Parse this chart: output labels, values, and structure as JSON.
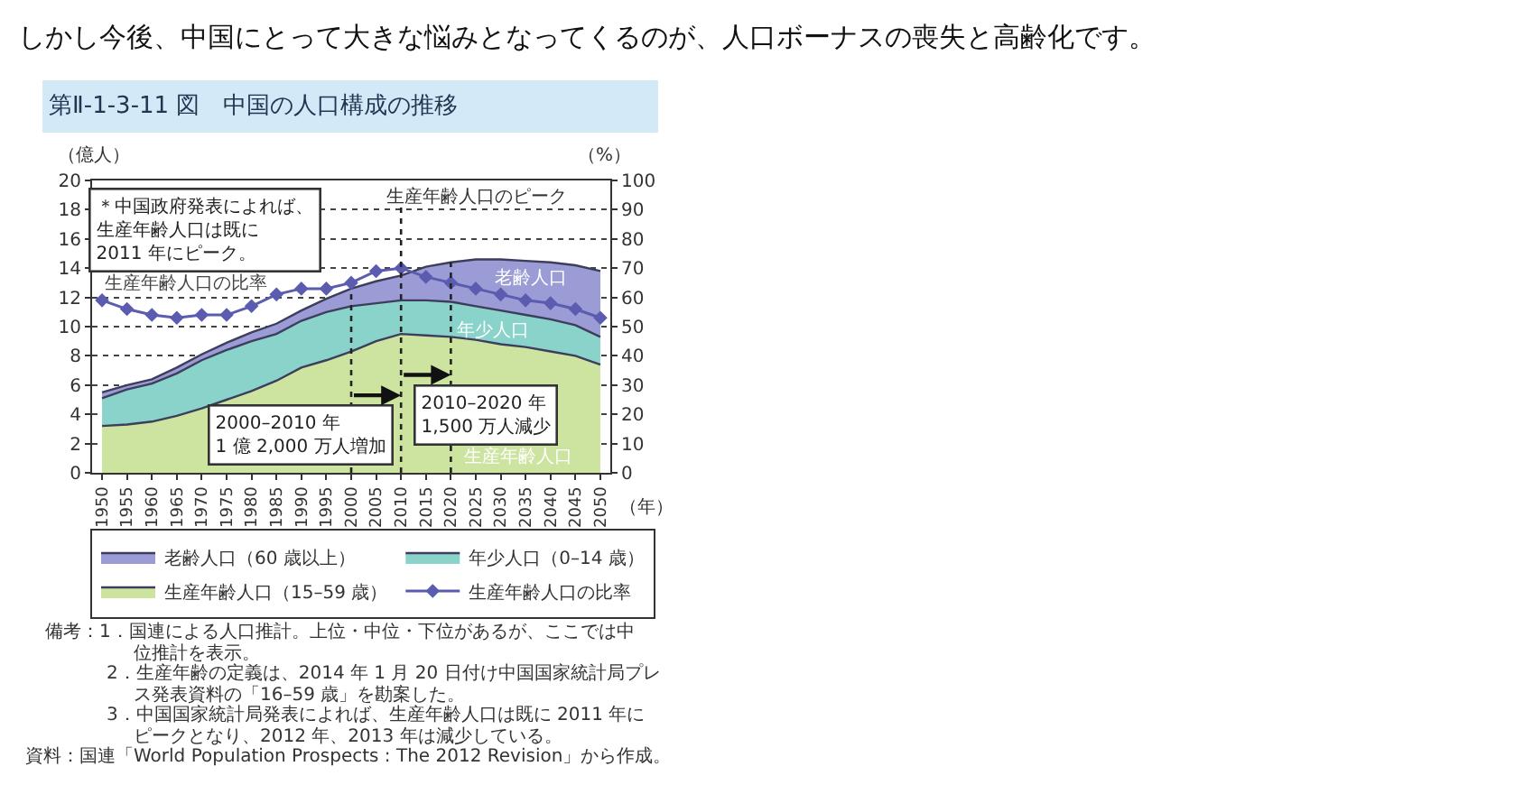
{
  "chart_data": {
    "type": "area",
    "stacked": true,
    "title": "しかし今後、中国にとって大きな悩みとなってくるのが、人口ボーナスの喪失と高齢化です。",
    "subtitle": "第Ⅱ-1-3-11 図　中国の人口構成の推移",
    "xlabel": "（年）",
    "ylabel": "（億人）",
    "y2label": "（%）",
    "x": [
      1950,
      1955,
      1960,
      1965,
      1970,
      1975,
      1980,
      1985,
      1990,
      1995,
      2000,
      2005,
      2010,
      2015,
      2020,
      2025,
      2030,
      2035,
      2040,
      2045,
      2050
    ],
    "series": [
      {
        "name": "生産年齢人口（15–59 歳）",
        "color": "#cde4a0",
        "values": [
          3.2,
          3.3,
          3.5,
          3.9,
          4.4,
          5.0,
          5.6,
          6.3,
          7.2,
          7.7,
          8.3,
          9.0,
          9.5,
          9.4,
          9.3,
          9.1,
          8.8,
          8.6,
          8.3,
          8.0,
          7.4
        ]
      },
      {
        "name": "年少人口（0–14 歳）",
        "color": "#8ad3ca",
        "values": [
          1.9,
          2.4,
          2.6,
          2.9,
          3.3,
          3.4,
          3.4,
          3.2,
          3.2,
          3.3,
          3.1,
          2.6,
          2.3,
          2.4,
          2.4,
          2.3,
          2.3,
          2.2,
          2.2,
          2.1,
          1.9
        ]
      },
      {
        "name": "老齢人口（60 歳以上）",
        "color": "#9b9bd6",
        "values": [
          0.4,
          0.3,
          0.3,
          0.4,
          0.4,
          0.5,
          0.6,
          0.7,
          0.7,
          0.9,
          1.2,
          1.5,
          1.7,
          2.3,
          2.7,
          3.2,
          3.5,
          3.7,
          3.9,
          4.1,
          4.5
        ]
      },
      {
        "name": "生産年齢人口の比率",
        "type": "line",
        "axis": "y2",
        "color": "#5b5bb0",
        "marker": "diamond",
        "values": [
          59,
          56,
          54,
          53,
          54,
          54,
          57,
          61,
          63,
          63,
          65,
          69,
          70,
          67,
          65,
          63,
          61,
          59,
          58,
          56,
          53
        ]
      }
    ],
    "xlim": [
      1948,
      2052
    ],
    "xticks": [
      1950,
      1955,
      1960,
      1965,
      1970,
      1975,
      1980,
      1985,
      1990,
      1995,
      2000,
      2005,
      2010,
      2015,
      2020,
      2025,
      2030,
      2035,
      2040,
      2045,
      2050
    ],
    "ylim": [
      0,
      20
    ],
    "yticks": [
      0,
      2,
      4,
      6,
      8,
      10,
      12,
      14,
      16,
      18,
      20
    ],
    "y2lim": [
      0,
      100
    ],
    "y2ticks": [
      0,
      10,
      20,
      30,
      40,
      50,
      60,
      70,
      80,
      90,
      100
    ],
    "grid": "y",
    "legend": "bottom",
    "ref_lines": [
      {
        "axis": "x",
        "value": 2000,
        "line_style": "dotted"
      },
      {
        "axis": "x",
        "value": 2010,
        "label": "生産年齢人口のピーク",
        "line_style": "dotted"
      },
      {
        "axis": "x",
        "value": 2020,
        "line_style": "dotted"
      }
    ],
    "annotations": [
      "＊中国政府発表によれば、生産年齢人口は既に2011 年にピーク。",
      "生産年齢人口の比率",
      "老齢人口",
      "年少人口",
      "生産年齢人口",
      {
        "text": "2000–2010 年1 億 2,000 万人増加",
        "x": 2010,
        "y": 5.3
      },
      {
        "text": "2010–2020 年1,500 万人減少",
        "x": 2020,
        "y": 6.7
      },
      "備考：1．国連による人口推計。上位・中位・下位があるが、ここでは中位推計を表示。",
      "2．生産年齢の定義は、2014 年 1 月 20 日付け中国国家統計局プレス発表資料の「16–59 歳」を勘案した。",
      "3．中国国家統計局発表によれば、生産年齢人口は既に 2011 年にピークとなり、2012 年、2013 年は減少している。",
      "資料：国連「World Population Prospects : The 2012 Revision」から作成。"
    ]
  }
}
